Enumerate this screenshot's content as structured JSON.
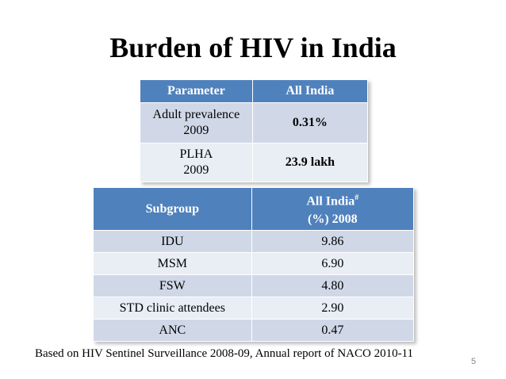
{
  "slide": {
    "title": "Burden of HIV in India",
    "page_number": "5",
    "footnote": "Based  on  HIV  Sentinel Surveillance 2008-09,  Annual report of  NACO 2010-11"
  },
  "table1": {
    "headers": [
      "Parameter",
      "All India"
    ],
    "rows": [
      {
        "param_line1": "Adult prevalence",
        "param_line2": "2009",
        "value": "0.31%"
      },
      {
        "param_line1": "PLHA",
        "param_line2": "2009",
        "value": "23.9 lakh"
      }
    ]
  },
  "table2": {
    "header_subgroup": "Subgroup",
    "header_all_india": "All India",
    "header_all_india_mark": "#",
    "header_all_india_line2": "(%) 2008",
    "rows": [
      {
        "subgroup": "IDU",
        "value": "9.86"
      },
      {
        "subgroup": "MSM",
        "value": "6.90"
      },
      {
        "subgroup": "FSW",
        "value": "4.80"
      },
      {
        "subgroup": "STD clinic attendees",
        "value": "2.90"
      },
      {
        "subgroup": "ANC",
        "value": "0.47"
      }
    ]
  },
  "colors": {
    "header_bg": "#4f81bd",
    "row_dark": "#d0d8e8",
    "row_light": "#e9edf4"
  }
}
